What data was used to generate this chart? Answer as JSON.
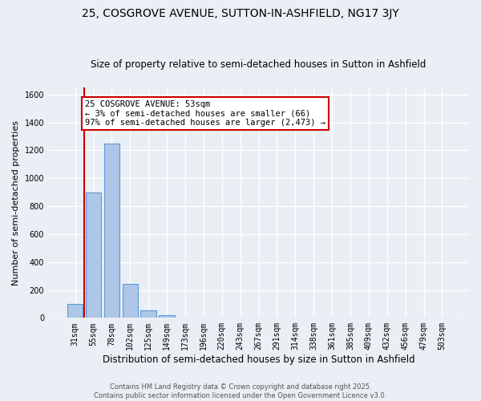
{
  "title": "25, COSGROVE AVENUE, SUTTON-IN-ASHFIELD, NG17 3JY",
  "subtitle": "Size of property relative to semi-detached houses in Sutton in Ashfield",
  "xlabel": "Distribution of semi-detached houses by size in Sutton in Ashfield",
  "ylabel": "Number of semi-detached properties",
  "footer": "Contains HM Land Registry data © Crown copyright and database right 2025.\nContains public sector information licensed under the Open Government Licence v3.0.",
  "categories": [
    "31sqm",
    "55sqm",
    "78sqm",
    "102sqm",
    "125sqm",
    "149sqm",
    "173sqm",
    "196sqm",
    "220sqm",
    "243sqm",
    "267sqm",
    "291sqm",
    "314sqm",
    "338sqm",
    "361sqm",
    "385sqm",
    "409sqm",
    "432sqm",
    "456sqm",
    "479sqm",
    "503sqm"
  ],
  "values": [
    100,
    900,
    1250,
    245,
    55,
    20,
    0,
    0,
    0,
    0,
    0,
    0,
    0,
    0,
    0,
    0,
    0,
    0,
    0,
    0,
    0
  ],
  "bar_color": "#aec6e8",
  "bar_edge_color": "#5b9bd5",
  "annotation_text": "25 COSGROVE AVENUE: 53sqm\n← 3% of semi-detached houses are smaller (66)\n97% of semi-detached houses are larger (2,473) →",
  "annotation_box_color": "#ffffff",
  "annotation_box_edge_color": "#cc0000",
  "vline_color": "#cc0000",
  "ylim": [
    0,
    1650
  ],
  "yticks": [
    0,
    200,
    400,
    600,
    800,
    1000,
    1200,
    1400,
    1600
  ],
  "bg_color": "#eaeef5",
  "plot_bg_color": "#eaeef5",
  "grid_color": "#ffffff",
  "title_fontsize": 10,
  "subtitle_fontsize": 8.5,
  "xlabel_fontsize": 8.5,
  "ylabel_fontsize": 8,
  "tick_fontsize": 7,
  "footer_fontsize": 6,
  "annotation_fontsize": 7.5
}
